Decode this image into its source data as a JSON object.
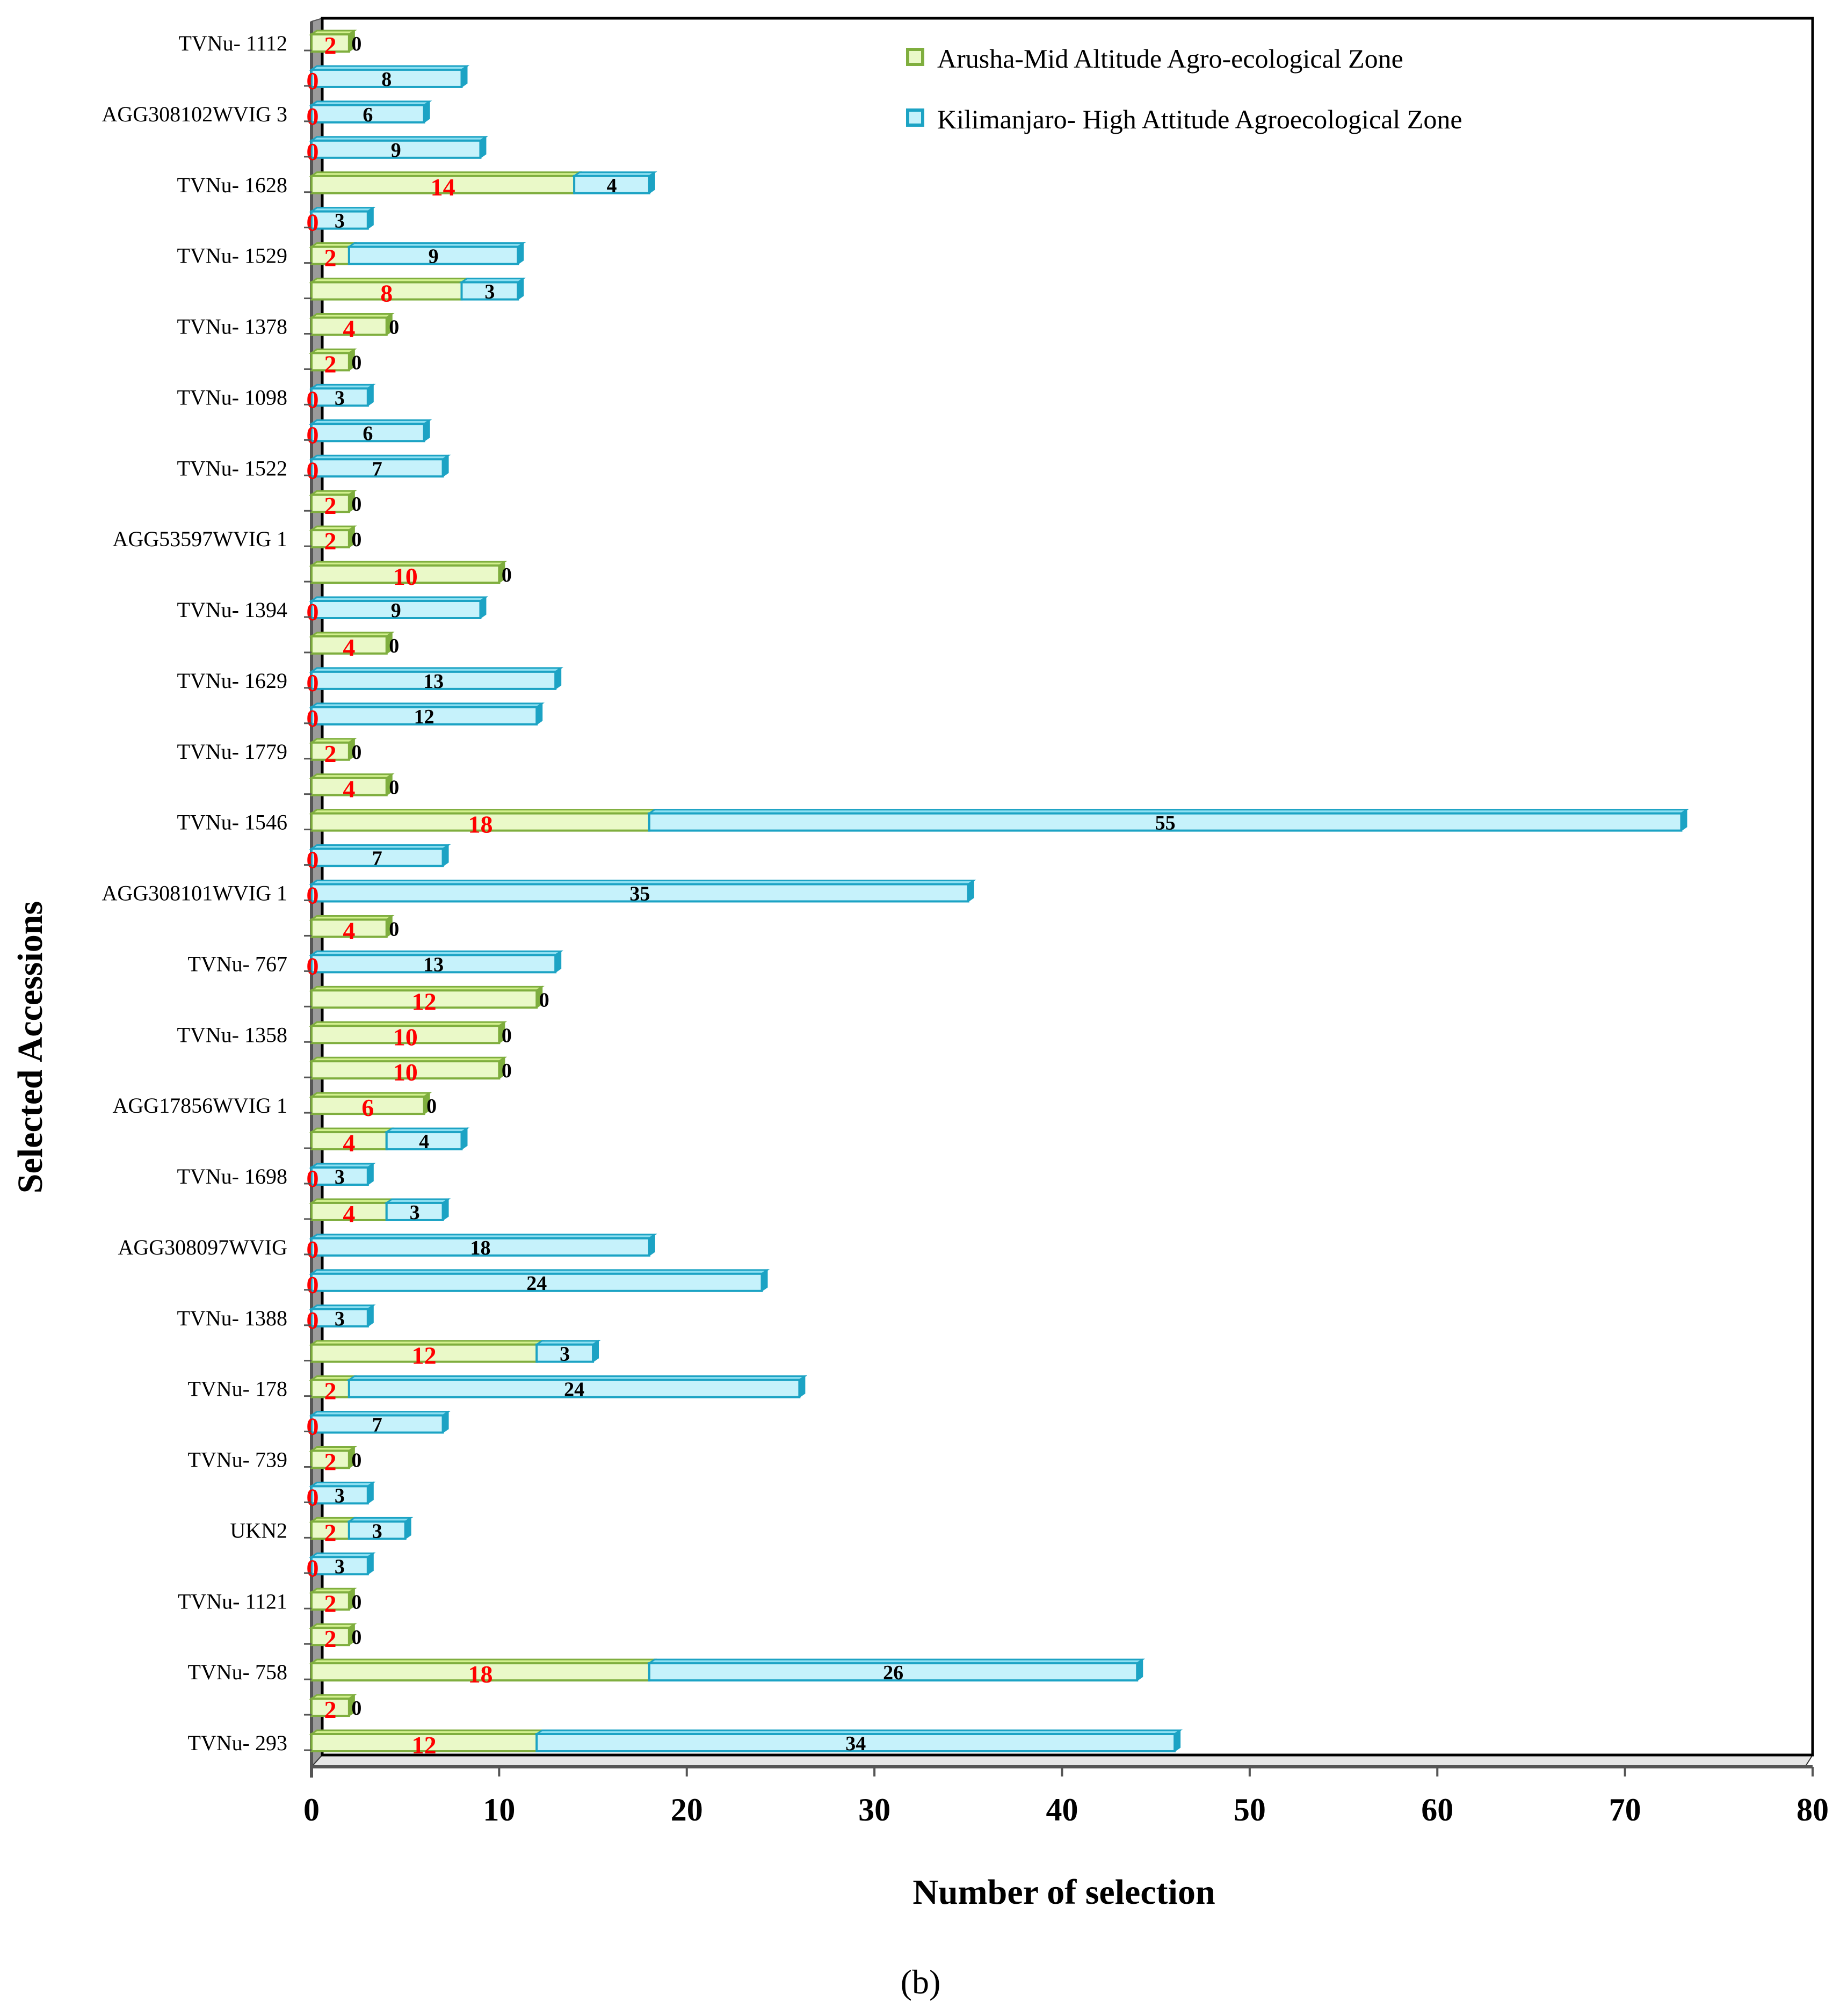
{
  "chart_data": {
    "type": "bar",
    "orientation": "horizontal",
    "stacked": true,
    "xlabel": "Number of selection",
    "ylabel": "Selected Accessions",
    "caption": "(b)",
    "xlim": [
      0,
      80
    ],
    "xticks": [
      0,
      10,
      20,
      30,
      40,
      50,
      60,
      70,
      80
    ],
    "grid": false,
    "legend_position": "top-right",
    "category_labels": [
      "TVNu- 1112",
      "",
      "AGG308102WVIG 3",
      "",
      "TVNu- 1628",
      "",
      "TVNu- 1529",
      "",
      "TVNu- 1378",
      "",
      "TVNu- 1098",
      "",
      "TVNu- 1522",
      "",
      "AGG53597WVIG 1",
      "",
      "TVNu- 1394",
      "",
      "TVNu- 1629",
      "",
      "TVNu- 1779",
      "",
      "TVNu- 1546",
      "",
      "AGG308101WVIG 1",
      "",
      "TVNu- 767",
      "",
      "TVNu- 1358",
      "",
      "AGG17856WVIG 1",
      "",
      "TVNu- 1698",
      "",
      "AGG308097WVIG",
      "",
      "TVNu- 1388",
      "",
      "TVNu- 178",
      "",
      "TVNu- 739",
      "",
      "UKN2",
      "",
      "TVNu- 1121",
      "",
      "TVNu- 758",
      "",
      "TVNu- 293"
    ],
    "series": [
      {
        "name": "Arusha-Mid Altitude Agro-ecological Zone",
        "fill": "#eaf9c8",
        "stroke": "#7fae3e",
        "label_color": "#ff0000",
        "values": [
          2,
          0,
          0,
          0,
          14,
          0,
          2,
          8,
          4,
          2,
          0,
          0,
          0,
          2,
          2,
          10,
          0,
          4,
          0,
          0,
          2,
          4,
          18,
          0,
          0,
          4,
          0,
          12,
          10,
          10,
          6,
          4,
          0,
          4,
          0,
          0,
          0,
          12,
          2,
          0,
          2,
          0,
          2,
          0,
          2,
          2,
          18,
          2,
          12
        ]
      },
      {
        "name": "Kilimanjaro- High Attitude Agroecological Zone",
        "fill": "#c6f2fb",
        "stroke": "#1ca3c4",
        "label_color": "#000000",
        "values": [
          0,
          8,
          6,
          9,
          4,
          3,
          9,
          3,
          0,
          0,
          3,
          6,
          7,
          0,
          0,
          0,
          9,
          0,
          13,
          12,
          0,
          0,
          55,
          7,
          35,
          0,
          13,
          0,
          0,
          0,
          0,
          4,
          3,
          3,
          18,
          24,
          3,
          3,
          24,
          7,
          0,
          3,
          3,
          3,
          0,
          0,
          26,
          0,
          34
        ]
      }
    ]
  }
}
